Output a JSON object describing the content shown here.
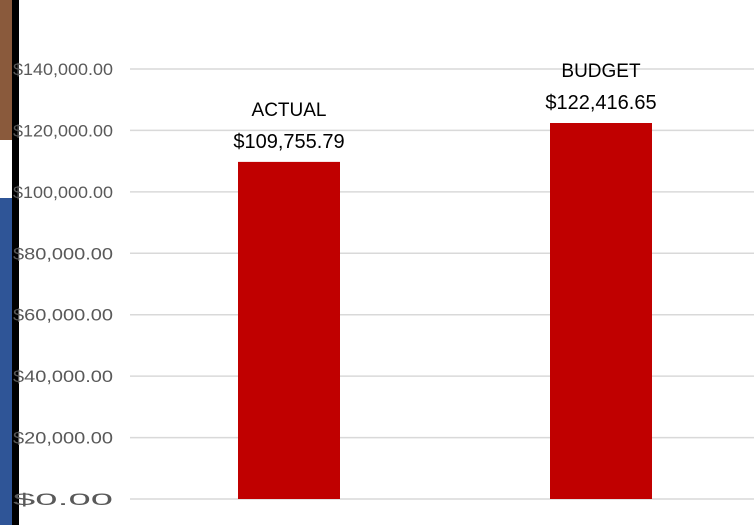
{
  "chart_data": {
    "type": "bar",
    "title": "",
    "xlabel": "",
    "ylabel": "",
    "categories": [
      "ACTUAL",
      "BUDGET"
    ],
    "values": [
      109755.79,
      122416.65
    ],
    "value_labels": [
      "$109,755.79",
      "$122,416.65"
    ],
    "ylim": [
      0,
      140000
    ],
    "yticks": [
      0,
      20000,
      40000,
      60000,
      80000,
      100000,
      120000,
      140000
    ],
    "ytick_labels": [
      "$0.00",
      "$20,000.00",
      "$40,000.00",
      "$60,000.00",
      "$80,000.00",
      "$100,000.00",
      "$120,000.00",
      "$140,000.00"
    ],
    "grid": true,
    "legend": "none",
    "bar_color": "#c00000",
    "grid_color": "#d9d9d9",
    "text_color": "#595959",
    "label_color": "#000000"
  }
}
